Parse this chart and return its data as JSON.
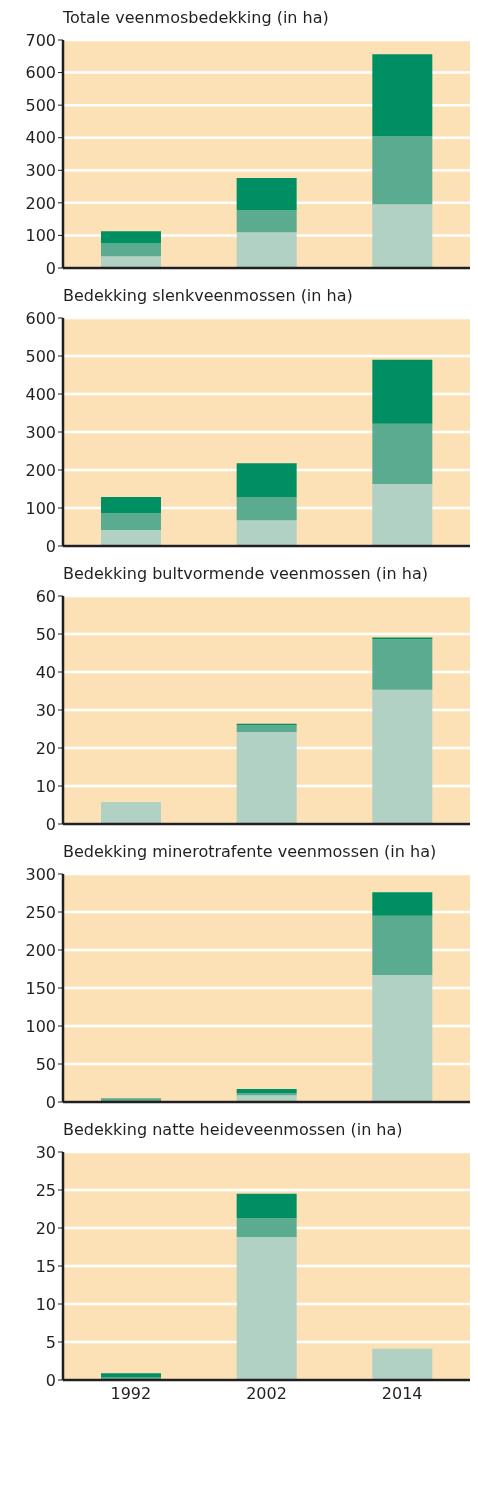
{
  "chart_data": [
    {
      "type": "bar",
      "title": "Totale veenmosbedekking (in ha)",
      "categories": [
        "1992",
        "2002",
        "2014"
      ],
      "stacked": true,
      "ylim": [
        0,
        700
      ],
      "yticks": [
        0,
        100,
        200,
        300,
        400,
        500,
        600,
        700
      ],
      "grid": "y",
      "tick_labels": "y",
      "series": [
        {
          "color": "#b1d1c4",
          "values": [
            36,
            110,
            196
          ]
        },
        {
          "color": "#5aab8f",
          "values": [
            41,
            68,
            208
          ]
        },
        {
          "color": "#008f62",
          "values": [
            36,
            98,
            252
          ]
        }
      ]
    },
    {
      "type": "bar",
      "title": "Bedekking slenkveenmossen (in ha)",
      "categories": [
        "1992",
        "2002",
        "2014"
      ],
      "stacked": true,
      "ylim": [
        0,
        600
      ],
      "yticks": [
        0,
        100,
        200,
        300,
        400,
        500,
        600
      ],
      "grid": "y",
      "tick_labels": "y",
      "series": [
        {
          "color": "#b1d1c4",
          "values": [
            42,
            68,
            163
          ]
        },
        {
          "color": "#5aab8f",
          "values": [
            44,
            61,
            159
          ]
        },
        {
          "color": "#008f62",
          "values": [
            43,
            89,
            168
          ]
        }
      ]
    },
    {
      "type": "bar",
      "title": "Bedekking bultvormende veenmossen (in ha)",
      "categories": [
        "1992",
        "2002",
        "2014"
      ],
      "stacked": true,
      "ylim": [
        0,
        60
      ],
      "yticks": [
        0,
        10,
        20,
        30,
        40,
        50,
        60
      ],
      "grid": "y",
      "tick_labels": "y",
      "series": [
        {
          "color": "#b1d1c4",
          "values": [
            5.8,
            24.2,
            35.3
          ]
        },
        {
          "color": "#5aab8f",
          "values": [
            0,
            1.8,
            13.3
          ]
        },
        {
          "color": "#008f62",
          "values": [
            0,
            0.4,
            0.5
          ]
        }
      ]
    },
    {
      "type": "bar",
      "title": "Bedekking minerotrafente veenmossen (in ha)",
      "categories": [
        "1992",
        "2002",
        "2014"
      ],
      "stacked": true,
      "ylim": [
        0,
        300
      ],
      "yticks": [
        0,
        50,
        100,
        150,
        200,
        250,
        300
      ],
      "grid": "y",
      "tick_labels": "y",
      "series": [
        {
          "color": "#b1d1c4",
          "values": [
            1,
            9,
            167
          ]
        },
        {
          "color": "#5aab8f",
          "values": [
            4,
            3,
            78
          ]
        },
        {
          "color": "#008f62",
          "values": [
            0,
            5,
            31
          ]
        }
      ]
    },
    {
      "type": "bar",
      "title": "Bedekking natte heideveenmossen (in ha)",
      "categories": [
        "1992",
        "2002",
        "2014"
      ],
      "stacked": true,
      "ylim": [
        0,
        30
      ],
      "yticks": [
        0,
        5,
        10,
        15,
        20,
        25,
        30
      ],
      "grid": "y",
      "series": [
        {
          "color": "#b1d1c4",
          "values": [
            0,
            18.8,
            4.1
          ]
        },
        {
          "color": "#5aab8f",
          "values": [
            0.4,
            2.5,
            0
          ]
        },
        {
          "color": "#008f62",
          "values": [
            0.5,
            3.2,
            0
          ]
        }
      ]
    }
  ]
}
